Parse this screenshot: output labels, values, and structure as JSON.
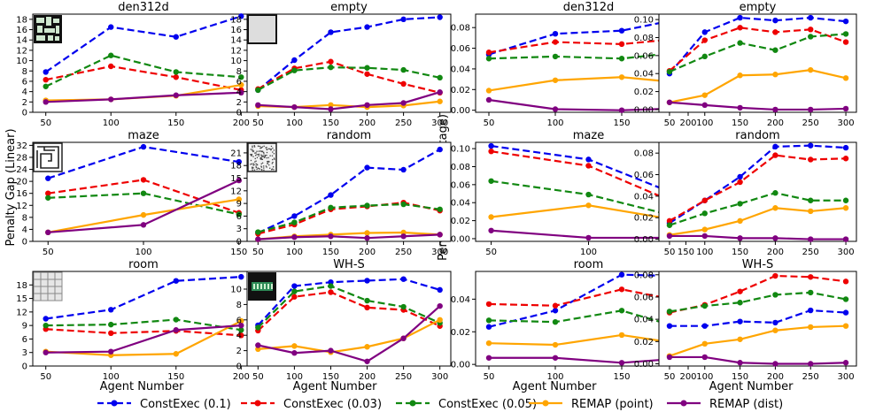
{
  "figure": {
    "ylabel_left": "Penalty Gap (Linear)",
    "ylabel_right": "Penalty Gap (Percentage)",
    "xlabel": "Agent Number",
    "legend": [
      {
        "name": "ConstExec (0.1)",
        "color": "#0000ee",
        "dashed": true
      },
      {
        "name": "ConstExec (0.03)",
        "color": "#ee0000",
        "dashed": true
      },
      {
        "name": "ConstExec (0.05)",
        "color": "#118811",
        "dashed": true
      },
      {
        "name": "REMAP (point)",
        "color": "#ffa500",
        "dashed": false
      },
      {
        "name": "REMAP (dist)",
        "color": "#800080",
        "dashed": false
      }
    ]
  },
  "chart_data": [
    {
      "type": "line",
      "title": "den312d",
      "map_icon": "den312d-map-icon",
      "x": [
        50,
        100,
        150,
        200
      ],
      "xlim": [
        40,
        210
      ],
      "ylim": [
        0,
        19
      ],
      "yticks": [
        0,
        2,
        4,
        6,
        8,
        10,
        12,
        14,
        16,
        18
      ],
      "series": [
        {
          "name": "ConstExec (0.1)",
          "values": [
            7.8,
            16.5,
            14.6,
            18.6
          ]
        },
        {
          "name": "ConstExec (0.03)",
          "values": [
            6.3,
            8.9,
            6.8,
            4.3
          ]
        },
        {
          "name": "ConstExec (0.05)",
          "values": [
            5.0,
            11.0,
            7.8,
            6.8
          ]
        },
        {
          "name": "REMAP (point)",
          "values": [
            2.3,
            2.5,
            3.2,
            5.3
          ]
        },
        {
          "name": "REMAP (dist)",
          "values": [
            2.0,
            2.5,
            3.3,
            3.8
          ]
        }
      ]
    },
    {
      "type": "line",
      "title": "empty",
      "map_icon": "empty-map-icon",
      "x": [
        50,
        100,
        150,
        200,
        250,
        300
      ],
      "xlim": [
        35,
        315
      ],
      "ylim": [
        0,
        19
      ],
      "yticks": [
        0,
        2,
        4,
        6,
        8,
        10,
        12,
        14,
        16,
        18
      ],
      "series": [
        {
          "name": "ConstExec (0.1)",
          "values": [
            4.3,
            10.1,
            15.5,
            16.5,
            18.0,
            18.4
          ]
        },
        {
          "name": "ConstExec (0.03)",
          "values": [
            4.5,
            8.5,
            9.8,
            7.4,
            5.5,
            3.8
          ]
        },
        {
          "name": "ConstExec (0.05)",
          "values": [
            4.3,
            8.1,
            8.7,
            8.6,
            8.2,
            6.7
          ]
        },
        {
          "name": "REMAP (point)",
          "values": [
            1.2,
            1.0,
            1.4,
            1.0,
            1.3,
            2.1
          ]
        },
        {
          "name": "REMAP (dist)",
          "values": [
            1.4,
            1.0,
            0.6,
            1.4,
            1.8,
            3.9
          ]
        }
      ]
    },
    {
      "type": "line",
      "title": "den312d",
      "x": [
        50,
        100,
        150,
        200
      ],
      "xlim": [
        40,
        210
      ],
      "ylim": [
        -0.002,
        0.093
      ],
      "yticks": [
        0.0,
        0.02,
        0.04,
        0.06,
        0.08
      ],
      "series": [
        {
          "name": "ConstExec (0.1)",
          "values": [
            0.054,
            0.074,
            0.077,
            0.09
          ]
        },
        {
          "name": "ConstExec (0.03)",
          "values": [
            0.056,
            0.066,
            0.064,
            0.07
          ]
        },
        {
          "name": "ConstExec (0.05)",
          "values": [
            0.05,
            0.052,
            0.05,
            0.057
          ]
        },
        {
          "name": "REMAP (point)",
          "values": [
            0.019,
            0.029,
            0.032,
            0.026
          ]
        },
        {
          "name": "REMAP (dist)",
          "values": [
            0.01,
            0.001,
            0.0,
            0.002
          ]
        }
      ]
    },
    {
      "type": "line",
      "title": "empty",
      "x": [
        50,
        100,
        150,
        200,
        250,
        300
      ],
      "xlim": [
        35,
        315
      ],
      "ylim": [
        -0.003,
        0.106
      ],
      "yticks": [
        0.0,
        0.02,
        0.04,
        0.06,
        0.08,
        0.1
      ],
      "series": [
        {
          "name": "ConstExec (0.1)",
          "values": [
            0.04,
            0.086,
            0.102,
            0.099,
            0.102,
            0.098
          ]
        },
        {
          "name": "ConstExec (0.03)",
          "values": [
            0.043,
            0.077,
            0.091,
            0.086,
            0.089,
            0.075
          ]
        },
        {
          "name": "ConstExec (0.05)",
          "values": [
            0.042,
            0.059,
            0.074,
            0.066,
            0.081,
            0.084
          ]
        },
        {
          "name": "REMAP (point)",
          "values": [
            0.008,
            0.016,
            0.038,
            0.039,
            0.044,
            0.035
          ]
        },
        {
          "name": "REMAP (dist)",
          "values": [
            0.008,
            0.005,
            0.002,
            0.0,
            0.0,
            0.001
          ]
        }
      ]
    },
    {
      "type": "line",
      "title": "maze",
      "map_icon": "maze-map-icon",
      "x": [
        50,
        100,
        150
      ],
      "xlim": [
        42,
        158
      ],
      "ylim": [
        0,
        33
      ],
      "yticks": [
        0,
        4,
        8,
        12,
        16,
        20,
        24,
        28,
        32
      ],
      "series": [
        {
          "name": "ConstExec (0.1)",
          "values": [
            21.0,
            31.5,
            26.5
          ]
        },
        {
          "name": "ConstExec (0.03)",
          "values": [
            16.0,
            20.5,
            9.5
          ]
        },
        {
          "name": "ConstExec (0.05)",
          "values": [
            14.5,
            16.0,
            9.0
          ]
        },
        {
          "name": "REMAP (point)",
          "values": [
            3.0,
            8.8,
            14.0
          ]
        },
        {
          "name": "REMAP (dist)",
          "values": [
            3.0,
            5.5,
            20.3
          ]
        }
      ]
    },
    {
      "type": "line",
      "title": "random",
      "map_icon": "random-map-icon",
      "x": [
        50,
        100,
        150,
        200,
        250,
        300
      ],
      "xlim": [
        35,
        315
      ],
      "ylim": [
        0,
        23.5
      ],
      "yticks": [
        0,
        3,
        6,
        9,
        12,
        15,
        18,
        21
      ],
      "series": [
        {
          "name": "ConstExec (0.1)",
          "values": [
            2.0,
            6.0,
            11.0,
            17.5,
            17.0,
            21.8
          ]
        },
        {
          "name": "ConstExec (0.03)",
          "values": [
            1.8,
            4.0,
            7.6,
            8.3,
            9.2,
            7.3
          ]
        },
        {
          "name": "ConstExec (0.05)",
          "values": [
            2.2,
            4.5,
            8.0,
            8.5,
            8.8,
            7.6
          ]
        },
        {
          "name": "REMAP (point)",
          "values": [
            0.5,
            1.2,
            1.6,
            2.0,
            2.1,
            1.6
          ]
        },
        {
          "name": "REMAP (dist)",
          "values": [
            0.5,
            1.0,
            1.2,
            0.8,
            1.2,
            1.6
          ]
        }
      ]
    },
    {
      "type": "line",
      "title": "maze",
      "x": [
        50,
        100,
        150
      ],
      "xlim": [
        42,
        158
      ],
      "ylim": [
        -0.003,
        0.107
      ],
      "yticks": [
        0.0,
        0.02,
        0.04,
        0.06,
        0.08,
        0.1
      ],
      "series": [
        {
          "name": "ConstExec (0.1)",
          "values": [
            0.103,
            0.088,
            0.045
          ]
        },
        {
          "name": "ConstExec (0.03)",
          "values": [
            0.097,
            0.081,
            0.035
          ]
        },
        {
          "name": "ConstExec (0.05)",
          "values": [
            0.064,
            0.049,
            0.022
          ]
        },
        {
          "name": "REMAP (point)",
          "values": [
            0.024,
            0.037,
            0.019
          ]
        },
        {
          "name": "REMAP (dist)",
          "values": [
            0.009,
            0.001,
            0.001
          ]
        }
      ]
    },
    {
      "type": "line",
      "title": "random",
      "x": [
        50,
        100,
        150,
        200,
        250,
        300
      ],
      "xlim": [
        35,
        315
      ],
      "ylim": [
        -0.002,
        0.09
      ],
      "yticks": [
        0.0,
        0.02,
        0.04,
        0.06,
        0.08
      ],
      "series": [
        {
          "name": "ConstExec (0.1)",
          "values": [
            0.015,
            0.036,
            0.058,
            0.086,
            0.087,
            0.085
          ]
        },
        {
          "name": "ConstExec (0.03)",
          "values": [
            0.017,
            0.036,
            0.053,
            0.078,
            0.074,
            0.075
          ]
        },
        {
          "name": "ConstExec (0.05)",
          "values": [
            0.013,
            0.024,
            0.033,
            0.043,
            0.036,
            0.036
          ]
        },
        {
          "name": "REMAP (point)",
          "values": [
            0.004,
            0.009,
            0.017,
            0.029,
            0.026,
            0.029
          ]
        },
        {
          "name": "REMAP (dist)",
          "values": [
            0.003,
            0.003,
            0.001,
            0.001,
            0.0,
            0.0
          ]
        }
      ]
    },
    {
      "type": "line",
      "title": "room",
      "map_icon": "room-map-icon",
      "x": [
        50,
        100,
        150,
        200
      ],
      "xlim": [
        40,
        210
      ],
      "ylim": [
        0,
        21
      ],
      "yticks": [
        0,
        3,
        6,
        9,
        12,
        15,
        18
      ],
      "series": [
        {
          "name": "ConstExec (0.1)",
          "values": [
            10.5,
            12.5,
            18.9,
            19.8
          ]
        },
        {
          "name": "ConstExec (0.03)",
          "values": [
            8.2,
            7.3,
            7.8,
            6.8
          ]
        },
        {
          "name": "ConstExec (0.05)",
          "values": [
            9.0,
            9.2,
            10.3,
            8.0
          ]
        },
        {
          "name": "REMAP (point)",
          "values": [
            3.2,
            2.4,
            2.7,
            10.0
          ]
        },
        {
          "name": "REMAP (dist)",
          "values": [
            3.0,
            3.2,
            8.0,
            9.0
          ]
        }
      ]
    },
    {
      "type": "line",
      "title": "WH-S",
      "map_icon": "warehouse-map-icon",
      "x": [
        50,
        100,
        150,
        200,
        250,
        300
      ],
      "xlim": [
        35,
        315
      ],
      "ylim": [
        0,
        12.3
      ],
      "yticks": [
        0,
        2,
        4,
        6,
        8,
        10
      ],
      "series": [
        {
          "name": "ConstExec (0.1)",
          "values": [
            5.3,
            10.4,
            10.9,
            11.1,
            11.3,
            9.9
          ]
        },
        {
          "name": "ConstExec (0.03)",
          "values": [
            4.6,
            9.0,
            9.6,
            7.6,
            7.3,
            5.2
          ]
        },
        {
          "name": "ConstExec (0.05)",
          "values": [
            5.0,
            9.7,
            10.4,
            8.5,
            7.7,
            5.6
          ]
        },
        {
          "name": "REMAP (point)",
          "values": [
            2.2,
            2.6,
            1.8,
            2.5,
            3.6,
            6.0
          ]
        },
        {
          "name": "REMAP (dist)",
          "values": [
            2.7,
            1.7,
            2.0,
            0.6,
            3.6,
            7.8
          ]
        }
      ]
    },
    {
      "type": "line",
      "title": "room",
      "x": [
        50,
        100,
        150,
        200
      ],
      "xlim": [
        40,
        210
      ],
      "ylim": [
        -0.001,
        0.057
      ],
      "yticks": [
        0.0,
        0.02,
        0.04
      ],
      "series": [
        {
          "name": "ConstExec (0.1)",
          "values": [
            0.023,
            0.033,
            0.055,
            0.054
          ]
        },
        {
          "name": "ConstExec (0.03)",
          "values": [
            0.037,
            0.036,
            0.046,
            0.038
          ]
        },
        {
          "name": "ConstExec (0.05)",
          "values": [
            0.027,
            0.026,
            0.033,
            0.021
          ]
        },
        {
          "name": "REMAP (point)",
          "values": [
            0.013,
            0.012,
            0.018,
            0.012
          ]
        },
        {
          "name": "REMAP (dist)",
          "values": [
            0.004,
            0.004,
            0.001,
            0.004
          ]
        }
      ]
    },
    {
      "type": "line",
      "title": "WH-S",
      "x": [
        50,
        100,
        150,
        200,
        250,
        300
      ],
      "xlim": [
        35,
        315
      ],
      "ylim": [
        -0.002,
        0.083
      ],
      "yticks": [
        0.0,
        0.02,
        0.04,
        0.06,
        0.08
      ],
      "series": [
        {
          "name": "ConstExec (0.1)",
          "values": [
            0.034,
            0.034,
            0.038,
            0.037,
            0.048,
            0.046
          ]
        },
        {
          "name": "ConstExec (0.03)",
          "values": [
            0.046,
            0.053,
            0.065,
            0.079,
            0.078,
            0.074
          ]
        },
        {
          "name": "ConstExec (0.05)",
          "values": [
            0.047,
            0.052,
            0.055,
            0.062,
            0.064,
            0.058
          ]
        },
        {
          "name": "REMAP (point)",
          "values": [
            0.007,
            0.018,
            0.022,
            0.03,
            0.033,
            0.034
          ]
        },
        {
          "name": "REMAP (dist)",
          "values": [
            0.006,
            0.006,
            0.001,
            0.0,
            0.0,
            0.001
          ]
        }
      ]
    }
  ]
}
